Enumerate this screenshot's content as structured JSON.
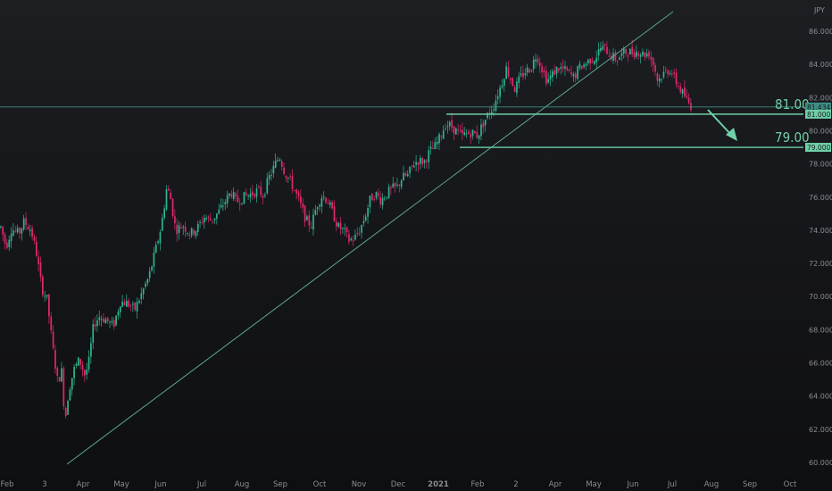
{
  "chart_data": {
    "type": "candlestick",
    "currency_label": "JPY",
    "y_ticks": [
      "86.000",
      "84.000",
      "82.000",
      "80.000",
      "78.000",
      "76.000",
      "74.000",
      "72.000",
      "70.000",
      "68.000",
      "66.000",
      "64.000",
      "62.000",
      "60.000"
    ],
    "y_tick_values": [
      86,
      84,
      82,
      80,
      78,
      76,
      74,
      72,
      70,
      68,
      66,
      64,
      62,
      60
    ],
    "ylim": [
      60,
      87.5
    ],
    "x_ticks": [
      "Feb",
      "3",
      "Apr",
      "May",
      "Jun",
      "Jul",
      "Aug",
      "Sep",
      "Oct",
      "Nov",
      "Dec",
      "2021",
      "Feb",
      "2",
      "Apr",
      "May",
      "Jun",
      "Jul",
      "Aug",
      "Sep",
      "Oct"
    ],
    "current_price_label": "81.434",
    "current_price": 81.434,
    "levels": [
      {
        "label": "81.00",
        "tag": "81.000",
        "value": 81.0
      },
      {
        "label": "79.00",
        "tag": "79.000",
        "value": 79.0
      }
    ],
    "trendline": {
      "from": [
        "3",
        60.0
      ],
      "to": [
        "Jun",
        86.5
      ]
    },
    "projection_arrow": "down toward 79.00",
    "colors": {
      "up": "#2fb48f",
      "down": "#e0296b",
      "level": "#6fd0a8",
      "trendline": "#5aa88f",
      "price_line": "#3d8f86"
    },
    "series_anchor_points": [
      [
        0,
        74.2
      ],
      [
        6,
        73.0
      ],
      [
        12,
        74.1
      ],
      [
        20,
        73.8
      ],
      [
        26,
        74.5
      ],
      [
        34,
        74.0
      ],
      [
        40,
        72.6
      ],
      [
        46,
        70.5
      ],
      [
        52,
        69.8
      ],
      [
        58,
        67.0
      ],
      [
        64,
        64.8
      ],
      [
        68,
        65.6
      ],
      [
        72,
        62.5
      ],
      [
        76,
        64.3
      ],
      [
        82,
        65.6
      ],
      [
        88,
        66.2
      ],
      [
        94,
        65.3
      ],
      [
        98,
        65.8
      ],
      [
        104,
        68.3
      ],
      [
        110,
        68.8
      ],
      [
        118,
        68.6
      ],
      [
        126,
        68.2
      ],
      [
        134,
        69.7
      ],
      [
        142,
        69.6
      ],
      [
        150,
        69.2
      ],
      [
        158,
        70.2
      ],
      [
        166,
        71.2
      ],
      [
        172,
        72.5
      ],
      [
        178,
        73.8
      ],
      [
        182,
        75.0
      ],
      [
        186,
        76.6
      ],
      [
        190,
        76.0
      ],
      [
        196,
        74.0
      ],
      [
        204,
        74.3
      ],
      [
        212,
        73.8
      ],
      [
        220,
        74.1
      ],
      [
        228,
        74.8
      ],
      [
        236,
        74.6
      ],
      [
        244,
        75.1
      ],
      [
        252,
        75.8
      ],
      [
        258,
        76.3
      ],
      [
        264,
        75.7
      ],
      [
        272,
        76.0
      ],
      [
        280,
        76.2
      ],
      [
        288,
        76.4
      ],
      [
        294,
        76.1
      ],
      [
        300,
        77.1
      ],
      [
        306,
        77.8
      ],
      [
        312,
        78.5
      ],
      [
        318,
        77.5
      ],
      [
        324,
        77.0
      ],
      [
        330,
        76.3
      ],
      [
        336,
        75.5
      ],
      [
        342,
        74.6
      ],
      [
        348,
        74.3
      ],
      [
        354,
        75.5
      ],
      [
        360,
        76.1
      ],
      [
        366,
        75.8
      ],
      [
        372,
        75.0
      ],
      [
        378,
        74.2
      ],
      [
        384,
        74.0
      ],
      [
        390,
        73.4
      ],
      [
        396,
        73.5
      ],
      [
        402,
        74.0
      ],
      [
        408,
        74.8
      ],
      [
        414,
        75.9
      ],
      [
        420,
        76.2
      ],
      [
        426,
        75.8
      ],
      [
        432,
        76.2
      ],
      [
        438,
        76.5
      ],
      [
        444,
        76.6
      ],
      [
        450,
        77.2
      ],
      [
        456,
        77.3
      ],
      [
        462,
        78.0
      ],
      [
        468,
        78.2
      ],
      [
        474,
        78.1
      ],
      [
        480,
        78.7
      ],
      [
        486,
        79.0
      ],
      [
        492,
        79.6
      ],
      [
        498,
        80.4
      ],
      [
        504,
        80.3
      ],
      [
        510,
        80.0
      ],
      [
        516,
        79.7
      ],
      [
        522,
        79.8
      ],
      [
        528,
        79.9
      ],
      [
        534,
        79.7
      ],
      [
        540,
        80.4
      ],
      [
        546,
        81.0
      ],
      [
        552,
        81.5
      ],
      [
        558,
        82.4
      ],
      [
        562,
        83.0
      ],
      [
        566,
        83.8
      ],
      [
        570,
        83.3
      ],
      [
        576,
        82.5
      ],
      [
        582,
        83.2
      ],
      [
        588,
        83.6
      ],
      [
        594,
        83.8
      ],
      [
        600,
        84.6
      ],
      [
        606,
        83.8
      ],
      [
        612,
        83.0
      ],
      [
        618,
        83.4
      ],
      [
        624,
        83.8
      ],
      [
        630,
        83.7
      ],
      [
        636,
        83.5
      ],
      [
        642,
        83.2
      ],
      [
        648,
        83.8
      ],
      [
        654,
        84.0
      ],
      [
        660,
        84.3
      ],
      [
        666,
        84.4
      ],
      [
        672,
        85.0
      ],
      [
        678,
        84.9
      ],
      [
        684,
        84.5
      ],
      [
        690,
        84.3
      ],
      [
        696,
        84.6
      ],
      [
        702,
        84.8
      ],
      [
        708,
        84.7
      ],
      [
        714,
        84.8
      ],
      [
        720,
        84.6
      ],
      [
        726,
        84.7
      ],
      [
        732,
        83.9
      ],
      [
        736,
        83.0
      ],
      [
        740,
        83.3
      ],
      [
        746,
        83.6
      ],
      [
        750,
        83.7
      ],
      [
        754,
        83.2
      ],
      [
        758,
        82.8
      ],
      [
        762,
        82.4
      ],
      [
        766,
        82.1
      ],
      [
        770,
        81.7
      ],
      [
        774,
        81.434
      ]
    ]
  }
}
